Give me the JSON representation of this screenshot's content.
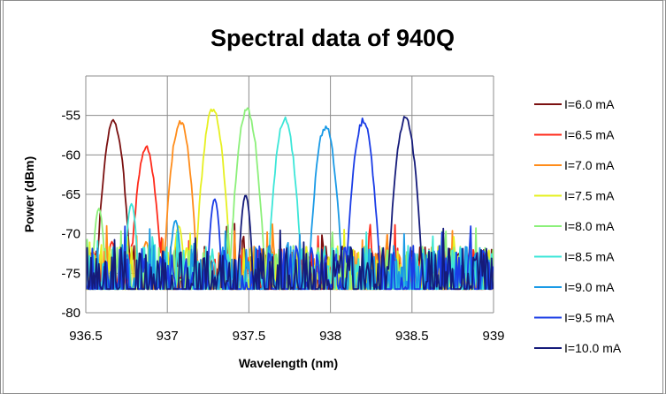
{
  "chart_data": {
    "type": "line",
    "title": "Spectral data of 940Q",
    "xlabel": "Wavelength (nm)",
    "ylabel": "Power (dBm)",
    "xlim": [
      936.5,
      939
    ],
    "ylim": [
      -80,
      -50
    ],
    "xticks": [
      "936.5",
      "937",
      "937.5",
      "938",
      "938.5",
      "939"
    ],
    "yticks": [
      "-55",
      "-60",
      "-65",
      "-70",
      "-75",
      "-80"
    ],
    "grid": true,
    "legend_position": "right",
    "noise_floor": -77,
    "series": [
      {
        "name": "I=6.0 mA",
        "color": "#7b1010",
        "peak_x": 936.67,
        "peak_y": -55.7,
        "sub_peak_x": 936.46,
        "sub_peak_y": -69
      },
      {
        "name": "I=6.5 mA",
        "color": "#ff2a1a",
        "peak_x": 936.87,
        "peak_y": -59.2,
        "sub_peak_x": 936.66,
        "sub_peak_y": -71
      },
      {
        "name": "I=7.0 mA",
        "color": "#ff8c1a",
        "peak_x": 937.08,
        "peak_y": -55.8,
        "sub_peak_x": 936.87,
        "sub_peak_y": -71
      },
      {
        "name": "I=7.5 mA",
        "color": "#e6f020",
        "peak_x": 937.28,
        "peak_y": -54.1,
        "sub_peak_x": 937.07,
        "sub_peak_y": -69
      },
      {
        "name": "I=8.0 mA",
        "color": "#8cf07a",
        "peak_x": 937.49,
        "peak_y": -54.3,
        "sub_peak_x": 936.58,
        "sub_peak_y": -66.8
      },
      {
        "name": "I=8.5 mA",
        "color": "#3ce6d8",
        "peak_x": 937.72,
        "peak_y": -55.6,
        "sub_peak_x": 936.78,
        "sub_peak_y": -66.2
      },
      {
        "name": "I=9.0 mA",
        "color": "#1a9ae6",
        "peak_x": 937.97,
        "peak_y": -56.4,
        "sub_peak_x": 937.05,
        "sub_peak_y": -68.3
      },
      {
        "name": "I=9.5 mA",
        "color": "#1a3ce6",
        "peak_x": 938.2,
        "peak_y": -55.7,
        "sub_peak_x": 937.29,
        "sub_peak_y": -65.6
      },
      {
        "name": "I=10.0 mA",
        "color": "#151b7a",
        "peak_x": 938.46,
        "peak_y": -55.4,
        "sub_peak_x": 937.48,
        "sub_peak_y": -65.1
      }
    ]
  }
}
